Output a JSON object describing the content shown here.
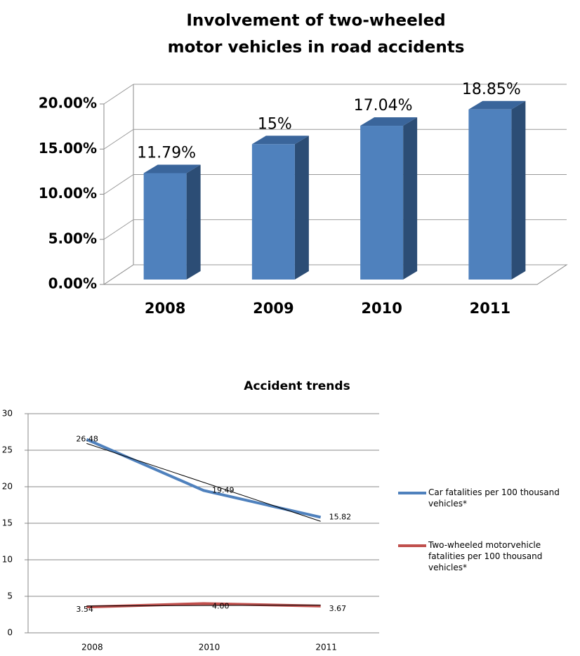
{
  "chart_data": [
    {
      "type": "bar3d",
      "title": [
        "Involvement of two-wheeled",
        "motor vehicles in road accidents"
      ],
      "categories": [
        "2008",
        "2009",
        "2010",
        "2011"
      ],
      "values": [
        11.79,
        15,
        17.04,
        18.85
      ],
      "value_labels": [
        "11.79%",
        "15%",
        "17.04%",
        "18.85%"
      ],
      "color": "#4f81bd",
      "ylim": [
        0,
        20
      ],
      "yticks": [
        {
          "value": 0,
          "label": "0.00%"
        },
        {
          "value": 5,
          "label": "5.00%"
        },
        {
          "value": 10,
          "label": "10.00%"
        },
        {
          "value": 15,
          "label": "15.00%"
        },
        {
          "value": 20,
          "label": "20.00%"
        }
      ],
      "grid": true
    },
    {
      "type": "line",
      "title": "Accident trends",
      "categories": [
        "2008",
        "2010",
        "2011"
      ],
      "series": [
        {
          "name": "Car fatalities per 100 thousand vehicles*",
          "color": "#4f81bd",
          "values": [
            26.48,
            19.49,
            15.82
          ]
        },
        {
          "name": "Two-wheeled motorvehicle fatalities per 100 thousand vehicles*",
          "color": "#c0504d",
          "values": [
            3.54,
            4.0,
            3.67
          ],
          "value_labels": [
            "3.54",
            "4.00",
            "3.67"
          ]
        }
      ],
      "ylim": [
        0,
        30
      ],
      "yticks": [
        0,
        5,
        10,
        15,
        20,
        25,
        30
      ],
      "grid": true,
      "trendline": true,
      "legend": "right"
    }
  ]
}
